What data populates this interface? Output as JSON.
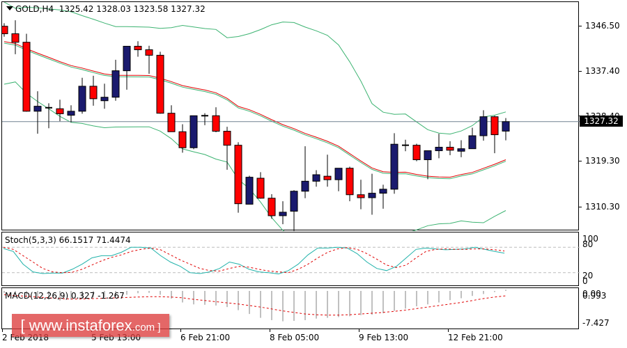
{
  "header": {
    "symbol": "GOLD,H4",
    "open": "1325.42",
    "high": "1328.03",
    "low": "1323.58",
    "close": "1327.32"
  },
  "price_axis": {
    "labels": [
      "1346.50",
      "1337.40",
      "1328.40",
      "1319.30",
      "1310.30"
    ],
    "current_price": "1327.32"
  },
  "stoch": {
    "title": "Stoch(5,3,3) 66.1517 71.4474",
    "levels": [
      "100",
      "80",
      "20",
      "0"
    ]
  },
  "macd": {
    "title": "MACD(12,26,9) 0.327 -1.267",
    "levels": [
      "0.993",
      "0.00",
      "-7.427"
    ]
  },
  "time_axis": {
    "labels": [
      "2 Feb 2018",
      "5 Feb 13:00",
      "6 Feb 21:00",
      "8 Feb 05:00",
      "9 Feb 13:00",
      "12 Feb 21:00"
    ]
  },
  "watermark": {
    "prefix": "[ www.instaforex",
    "suffix": ".com ]"
  },
  "colors": {
    "bull": "#1a1a6e",
    "bear": "#ff0000",
    "bollinger": "#3cb371",
    "ma": "#e00000",
    "stoch_main": "#20b2aa",
    "stoch_signal": "#e00000",
    "macd_hist": "#c0c0c0",
    "current_price_line": "#708090"
  },
  "chart_data": {
    "type": "candlestick",
    "title": "GOLD,H4",
    "ylabel": "Price",
    "ylim": [
      1305,
      1351
    ],
    "x_tick_labels": [
      "2 Feb 2018",
      "5 Feb 13:00",
      "6 Feb 21:00",
      "8 Feb 05:00",
      "9 Feb 13:00",
      "12 Feb 21:00"
    ],
    "last_ohlc": {
      "open": 1325.42,
      "high": 1328.03,
      "low": 1323.58,
      "close": 1327.32
    },
    "candles_ohlc_approx": [
      [
        1346.4,
        1347.0,
        1344.3,
        1344.9
      ],
      [
        1344.9,
        1347.6,
        1340.8,
        1343.2
      ],
      [
        1343.2,
        1344.9,
        1329.3,
        1329.4
      ],
      [
        1329.4,
        1333.4,
        1324.9,
        1330.4
      ],
      [
        1330.1,
        1331.0,
        1326.0,
        1330.1
      ],
      [
        1329.9,
        1331.7,
        1327.4,
        1328.9
      ],
      [
        1328.6,
        1330.6,
        1327.2,
        1329.4
      ],
      [
        1329.4,
        1336.1,
        1328.9,
        1334.4
      ],
      [
        1334.4,
        1336.5,
        1330.5,
        1331.9
      ],
      [
        1331.5,
        1334.9,
        1329.9,
        1332.2
      ],
      [
        1332.2,
        1339.7,
        1331.5,
        1337.5
      ],
      [
        1337.5,
        1342.4,
        1333.7,
        1342.4
      ],
      [
        1342.4,
        1343.4,
        1340.3,
        1341.7
      ],
      [
        1341.7,
        1342.5,
        1336.9,
        1340.6
      ],
      [
        1340.6,
        1341.3,
        1328.9,
        1329.0
      ],
      [
        1329.0,
        1330.6,
        1326.0,
        1325.3
      ],
      [
        1325.3,
        1326.8,
        1321.1,
        1322.1
      ],
      [
        1322.1,
        1328.5,
        1321.8,
        1328.5
      ],
      [
        1328.5,
        1329.0,
        1326.6,
        1328.5
      ],
      [
        1328.5,
        1330.2,
        1325.2,
        1325.4
      ],
      [
        1325.4,
        1326.3,
        1317.7,
        1322.6
      ],
      [
        1322.6,
        1323.2,
        1309.1,
        1310.9
      ],
      [
        1310.8,
        1316.5,
        1310.8,
        1316.2
      ],
      [
        1316.0,
        1317.2,
        1311.9,
        1312.0
      ],
      [
        1312.0,
        1312.8,
        1307.9,
        1308.5
      ],
      [
        1308.5,
        1311.4,
        1306.8,
        1309.2
      ],
      [
        1309.4,
        1313.6,
        1302.7,
        1313.4
      ],
      [
        1313.4,
        1322.4,
        1312.0,
        1315.4
      ],
      [
        1315.4,
        1317.6,
        1314.3,
        1316.7
      ],
      [
        1316.4,
        1320.7,
        1314.3,
        1315.7
      ],
      [
        1315.7,
        1318.0,
        1313.4,
        1318.0
      ],
      [
        1318.0,
        1318.3,
        1311.4,
        1312.7
      ],
      [
        1312.7,
        1315.7,
        1309.8,
        1312.1
      ],
      [
        1312.1,
        1316.9,
        1308.7,
        1313.0
      ],
      [
        1313.0,
        1314.7,
        1309.9,
        1313.8
      ],
      [
        1313.8,
        1325.0,
        1312.9,
        1322.8
      ],
      [
        1322.6,
        1323.7,
        1321.4,
        1322.6
      ],
      [
        1322.6,
        1322.9,
        1319.4,
        1319.7
      ],
      [
        1319.7,
        1321.5,
        1315.8,
        1321.5
      ],
      [
        1321.5,
        1324.9,
        1320.0,
        1322.2
      ],
      [
        1322.2,
        1323.4,
        1320.6,
        1321.6
      ],
      [
        1321.4,
        1323.6,
        1320.2,
        1321.9
      ],
      [
        1321.9,
        1326.1,
        1321.9,
        1324.5
      ],
      [
        1324.5,
        1329.6,
        1323.5,
        1328.3
      ],
      [
        1328.3,
        1328.5,
        1321.0,
        1324.7
      ],
      [
        1325.42,
        1328.03,
        1323.58,
        1327.32
      ]
    ],
    "indicators": {
      "bollinger_bands": "upper/middle/lower (green)",
      "moving_average": "red line",
      "stochastic": {
        "params": "5,3,3",
        "main": 66.1517,
        "signal": 71.4474,
        "levels": [
          20,
          80
        ],
        "range": [
          0,
          100
        ]
      },
      "macd": {
        "params": "12,26,9",
        "main": 0.327,
        "signal": -1.267,
        "axis": [
          0.993,
          -7.427
        ]
      }
    }
  }
}
